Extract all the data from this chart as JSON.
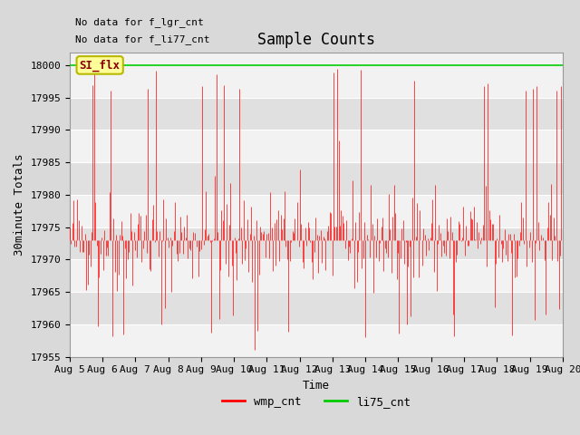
{
  "title": "Sample Counts",
  "xlabel": "Time",
  "ylabel": "30minute Totals",
  "annotations": [
    "No data for f_lgr_cnt",
    "No data for f_li77_cnt"
  ],
  "annotation_box_text": "SI_flx",
  "ylim": [
    17955,
    18002
  ],
  "yticks": [
    17955,
    17960,
    17965,
    17970,
    17975,
    17980,
    17985,
    17990,
    17995,
    18000
  ],
  "xtick_labels": [
    "Aug 5",
    "Aug 6",
    "Aug 7",
    "Aug 8",
    "Aug 9",
    "Aug 10",
    "Aug 11",
    "Aug 12",
    "Aug 13",
    "Aug 14",
    "Aug 15",
    "Aug 16",
    "Aug 17",
    "Aug 18",
    "Aug 19",
    "Aug 20"
  ],
  "bg_color": "#d9d9d9",
  "plot_bg_color_light": "#f2f2f2",
  "plot_bg_color_dark": "#e0e0e0",
  "red_color": "#ff0000",
  "green_color": "#00cc00",
  "legend_labels": [
    "wmp_cnt",
    "li75_cnt"
  ],
  "title_fontsize": 12,
  "label_fontsize": 9,
  "tick_fontsize": 8,
  "seed": 42,
  "n_points": 384,
  "base_value": 17973,
  "noise_std": 4,
  "li75_value": 18000
}
